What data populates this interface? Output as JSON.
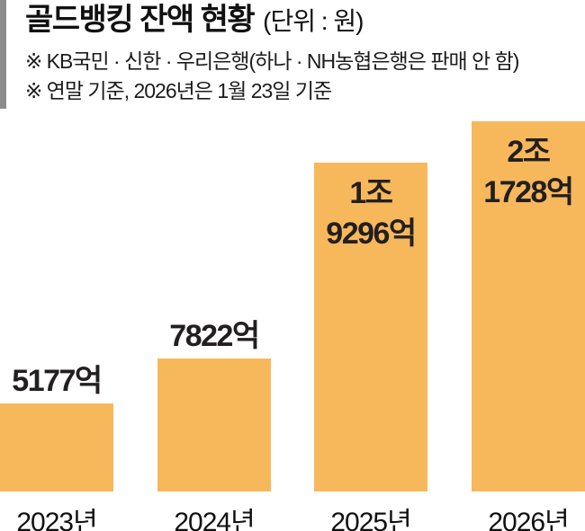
{
  "header": {
    "title": "골드뱅킹 잔액 현황",
    "unit": "(단위 : 원)",
    "notes": [
      "※ KB국민 · 신한 · 우리은행(하나 · NH농협은행은 판매 안 함)",
      "※ 연말 기준, 2026년은 1월 23일 기준"
    ]
  },
  "colors": {
    "bar": "#F7B85C",
    "accent_strip": "#8C8C8C",
    "label_text": "#231F20",
    "background": "#FFFFFF"
  },
  "chart_data": {
    "type": "bar",
    "title": "골드뱅킹 잔액 현황",
    "subtitle_unit": "(단위 : 원)",
    "categories": [
      "2023년",
      "2024년",
      "2025년",
      "2026년"
    ],
    "values": [
      5177,
      7822,
      19296,
      21728
    ],
    "values_unit": "억 원",
    "value_labels": [
      [
        "5177억"
      ],
      [
        "7822억"
      ],
      [
        "1조",
        "9296억"
      ],
      [
        "2조",
        "1728억"
      ]
    ],
    "label_position": [
      "above",
      "above",
      "inside",
      "inside"
    ],
    "xlabel": "",
    "ylabel": "",
    "ylim": [
      0,
      21728
    ],
    "grid": false,
    "legend": false,
    "bar_color": "#F7B85C"
  }
}
